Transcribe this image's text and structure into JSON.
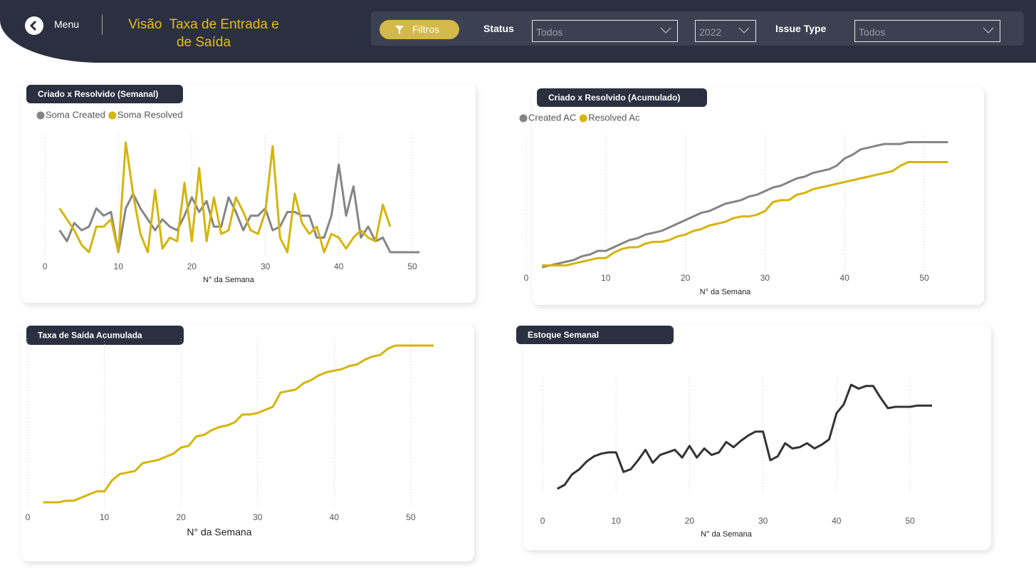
{
  "header": {
    "menu": "Menu",
    "title": "Visão  Taxa de Entrada e de Saída"
  },
  "filters": {
    "button": "Filtros",
    "status_label": "Status",
    "status_value": "Todos",
    "year_value": "2022",
    "issue_label": "Issue Type",
    "issue_value": "Todos"
  },
  "chart_data": [
    {
      "type": "line",
      "title": "Criado x Resolvido (Semanal)",
      "x_label": "N° da Semana",
      "legend": "top-left",
      "grid": true,
      "x": [
        2,
        3,
        4,
        5,
        6,
        7,
        8,
        9,
        10,
        11,
        12,
        13,
        14,
        15,
        16,
        17,
        18,
        19,
        20,
        21,
        22,
        23,
        24,
        25,
        26,
        27,
        28,
        29,
        30,
        31,
        32,
        33,
        34,
        35,
        36,
        37,
        38,
        39,
        40,
        41,
        42,
        43,
        44,
        45,
        46,
        47,
        48,
        49,
        50,
        51
      ],
      "series": [
        {
          "name": "Soma Created",
          "color": "#858585",
          "values": [
            6,
            3,
            8,
            6,
            7,
            12,
            10,
            11,
            0,
            12,
            16,
            12,
            9,
            6,
            9,
            7,
            6,
            10,
            15,
            11,
            14,
            7,
            7,
            15,
            11,
            6,
            10,
            10,
            12,
            6,
            7,
            11,
            11,
            10,
            10,
            4,
            4,
            10,
            24,
            10,
            18,
            4,
            7,
            3,
            4,
            0,
            0,
            0,
            0,
            0
          ]
        },
        {
          "name": "Soma Resolved",
          "color": "#d6b40a",
          "values": [
            12,
            9,
            6,
            2,
            0,
            7,
            7,
            9,
            0,
            30,
            16,
            5,
            0,
            17,
            1,
            4,
            3,
            19,
            3,
            23,
            3,
            15,
            5,
            6,
            15,
            11,
            6,
            5,
            11,
            29,
            4,
            0,
            16,
            8,
            5,
            7,
            0,
            5,
            4,
            1,
            4,
            6,
            4,
            3,
            13,
            7,
            null,
            null,
            null,
            null
          ]
        }
      ],
      "xlim": [
        -2,
        55
      ],
      "xticks": [
        0,
        10,
        20,
        30,
        40,
        50
      ],
      "ylim": [
        0,
        30
      ]
    },
    {
      "type": "line",
      "title": "Criado x Resolvido (Acumulado)",
      "x_label": "N° da Semana",
      "legend": "top-left",
      "grid": true,
      "x": [
        2,
        3,
        4,
        5,
        6,
        7,
        8,
        9,
        10,
        11,
        12,
        13,
        14,
        15,
        16,
        17,
        18,
        19,
        20,
        21,
        22,
        23,
        24,
        25,
        26,
        27,
        28,
        29,
        30,
        31,
        32,
        33,
        34,
        35,
        36,
        37,
        38,
        39,
        40,
        41,
        42,
        43,
        44,
        45,
        46,
        47,
        48,
        49,
        50,
        51,
        52,
        53
      ],
      "series": [
        {
          "name": "Created AC",
          "color": "#858585",
          "values": [
            0,
            1,
            2,
            3,
            4,
            6,
            7,
            9,
            9,
            11,
            13,
            15,
            16,
            18,
            19,
            20,
            22,
            24,
            26,
            28,
            30,
            31,
            33,
            35,
            36,
            37,
            39,
            40,
            42,
            44,
            45,
            47,
            49,
            50,
            52,
            53,
            54,
            56,
            60,
            62,
            65,
            66,
            67,
            68,
            68,
            68,
            69,
            69,
            69,
            69,
            69,
            69
          ]
        },
        {
          "name": "Resolved Ac",
          "color": "#d6b40a",
          "values": [
            1,
            1,
            1,
            1,
            2,
            3,
            4,
            5,
            5,
            8,
            10,
            11,
            11,
            13,
            14,
            14,
            15,
            17,
            18,
            20,
            21,
            23,
            24,
            25,
            27,
            28,
            28,
            29,
            31,
            36,
            37,
            37,
            40,
            41,
            43,
            44,
            45,
            46,
            47,
            48,
            49,
            50,
            51,
            52,
            53,
            56,
            58,
            58,
            58,
            58,
            58,
            58
          ]
        }
      ],
      "xlim": [
        -2,
        55.5
      ],
      "xticks": [
        0,
        10,
        20,
        30,
        40,
        50
      ],
      "ylim": [
        0,
        70
      ]
    },
    {
      "type": "line",
      "title": "Taxa de Saída Acumulada",
      "x_label": "N° da Semana",
      "grid": true,
      "x": [
        2,
        3,
        4,
        5,
        6,
        7,
        8,
        9,
        10,
        11,
        12,
        13,
        14,
        15,
        16,
        17,
        18,
        19,
        20,
        21,
        22,
        23,
        24,
        25,
        26,
        27,
        28,
        29,
        30,
        31,
        32,
        33,
        34,
        35,
        36,
        37,
        38,
        39,
        40,
        41,
        42,
        43,
        44,
        45,
        46,
        47,
        48,
        49,
        50,
        51,
        52,
        53
      ],
      "color": "#d6b40a",
      "values": [
        0,
        0,
        0,
        1,
        1,
        3,
        5,
        7,
        7,
        14,
        18,
        19,
        20,
        25,
        26,
        27,
        29,
        31,
        35,
        36,
        42,
        43,
        46,
        48,
        49,
        51,
        56,
        56,
        57,
        59,
        61,
        70,
        71,
        72,
        76,
        78,
        81,
        83,
        84,
        85,
        87,
        88,
        91,
        93,
        94,
        98,
        100,
        100,
        100,
        100,
        100,
        100
      ],
      "xlim": [
        -1,
        54
      ],
      "xticks": [
        0,
        10,
        20,
        30,
        40,
        50
      ],
      "ylim": [
        0,
        100
      ]
    },
    {
      "type": "line",
      "title": "Estoque Semanal",
      "x_label": "N° da Semana",
      "grid": true,
      "x": [
        2,
        3,
        4,
        5,
        6,
        7,
        8,
        9,
        10,
        11,
        12,
        13,
        14,
        15,
        16,
        17,
        18,
        19,
        20,
        21,
        22,
        23,
        24,
        25,
        26,
        27,
        28,
        29,
        30,
        31,
        32,
        33,
        34,
        35,
        36,
        37,
        38,
        39,
        40,
        41,
        42,
        43,
        44,
        45,
        46,
        47,
        48,
        49,
        50,
        51,
        52,
        53
      ],
      "color": "#333333",
      "values": [
        0,
        3,
        11,
        15,
        21,
        25,
        27,
        28,
        28,
        13,
        15,
        22,
        30,
        20,
        26,
        28,
        30,
        24,
        33,
        24,
        31,
        26,
        28,
        36,
        32,
        37,
        41,
        44,
        44,
        22,
        25,
        35,
        31,
        32,
        35,
        31,
        34,
        38,
        58,
        65,
        80,
        77,
        79,
        79,
        70,
        62,
        63,
        63,
        63,
        64,
        64,
        64
      ],
      "xlim": [
        -2,
        55
      ],
      "xticks": [
        0,
        10,
        20,
        30,
        40,
        50
      ],
      "ylim": [
        0,
        80
      ]
    }
  ]
}
